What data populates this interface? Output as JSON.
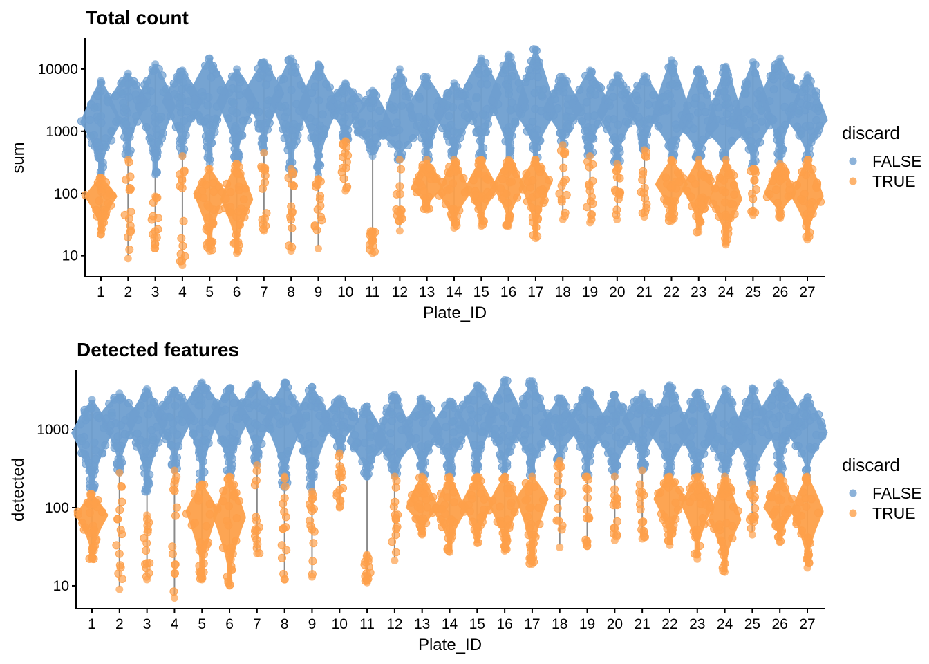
{
  "colors": {
    "FALSE": "#6f9fd0",
    "TRUE": "#fda04a",
    "line": "#8a8a8a"
  },
  "legend": {
    "title": "discard",
    "items": [
      "FALSE",
      "TRUE"
    ]
  },
  "chart_data": [
    {
      "type": "scatter",
      "title": "Total count",
      "xlabel": "Plate_ID",
      "ylabel": "sum",
      "yscale": "log10",
      "ylim": [
        4.6,
        31600
      ],
      "yticks": [
        10,
        100,
        1000,
        10000
      ],
      "ytick_labels": [
        "10",
        "100",
        "1000",
        "10000"
      ],
      "categories": [
        "1",
        "2",
        "3",
        "4",
        "5",
        "6",
        "7",
        "8",
        "9",
        "10",
        "11",
        "12",
        "13",
        "14",
        "15",
        "16",
        "17",
        "18",
        "19",
        "20",
        "21",
        "22",
        "23",
        "24",
        "25",
        "26",
        "27"
      ],
      "series": [
        {
          "name": "FALSE",
          "stat": "max/median/min",
          "values": [
            [
              6500,
              1400,
              200
            ],
            [
              8500,
              3000,
              400
            ],
            [
              12000,
              2500,
              200
            ],
            [
              9500,
              3000,
              400
            ],
            [
              15000,
              4000,
              300
            ],
            [
              10000,
              3000,
              300
            ],
            [
              13000,
              4000,
              450
            ],
            [
              15000,
              3000,
              200
            ],
            [
              12000,
              2500,
              200
            ],
            [
              6000,
              2500,
              700
            ],
            [
              4500,
              1200,
              400
            ],
            [
              10000,
              900,
              350
            ],
            [
              7500,
              2200,
              350
            ],
            [
              6000,
              1800,
              350
            ],
            [
              15000,
              4000,
              350
            ],
            [
              17000,
              3000,
              350
            ],
            [
              21000,
              2000,
              350
            ],
            [
              7500,
              2200,
              600
            ],
            [
              9500,
              2500,
              400
            ],
            [
              8000,
              2000,
              300
            ],
            [
              7800,
              2500,
              500
            ],
            [
              14000,
              1500,
              350
            ],
            [
              10000,
              1200,
              350
            ],
            [
              11000,
              1000,
              350
            ],
            [
              13000,
              1500,
              250
            ],
            [
              15000,
              3500,
              300
            ],
            [
              8000,
              1500,
              350
            ]
          ]
        },
        {
          "name": "TRUE",
          "stat": "max/median/min",
          "values": [
            [
              180,
              90,
              22
            ],
            [
              350,
              40,
              9
            ],
            [
              90,
              40,
              13
            ],
            [
              400,
              60,
              7
            ],
            [
              250,
              100,
              12
            ],
            [
              300,
              80,
              11
            ],
            [
              450,
              80,
              25
            ],
            [
              250,
              60,
              12
            ],
            [
              170,
              30,
              13
            ],
            [
              700,
              180,
              110
            ],
            [
              25,
              15,
              11
            ],
            [
              350,
              60,
              25
            ],
            [
              350,
              120,
              55
            ],
            [
              350,
              100,
              28
            ],
            [
              350,
              120,
              30
            ],
            [
              350,
              130,
              30
            ],
            [
              350,
              150,
              19
            ],
            [
              600,
              80,
              38
            ],
            [
              400,
              60,
              34
            ],
            [
              300,
              60,
              38
            ],
            [
              500,
              100,
              42
            ],
            [
              350,
              140,
              36
            ],
            [
              350,
              120,
              24
            ],
            [
              350,
              80,
              15
            ],
            [
              250,
              100,
              45
            ],
            [
              300,
              100,
              40
            ],
            [
              350,
              90,
              18
            ]
          ],
          "dense": [
            1,
            0,
            0,
            0,
            1,
            1,
            0,
            0,
            0,
            0,
            0,
            0,
            1,
            1,
            1,
            1,
            1,
            0,
            0,
            0,
            0,
            1,
            1,
            1,
            0,
            1,
            1
          ]
        }
      ]
    },
    {
      "type": "scatter",
      "title": "Detected features",
      "xlabel": "Plate_ID",
      "ylabel": "detected",
      "yscale": "log10",
      "ylim": [
        5.1,
        5770
      ],
      "yticks": [
        10,
        100,
        1000
      ],
      "ytick_labels": [
        "10",
        "100",
        "1000"
      ],
      "categories": [
        "1",
        "2",
        "3",
        "4",
        "5",
        "6",
        "7",
        "8",
        "9",
        "10",
        "11",
        "12",
        "13",
        "14",
        "15",
        "16",
        "17",
        "18",
        "19",
        "20",
        "21",
        "22",
        "23",
        "24",
        "25",
        "26",
        "27"
      ],
      "series": [
        {
          "name": "FALSE",
          "stat": "max/median/min",
          "values": [
            [
              2400,
              900,
              150
            ],
            [
              2900,
              1500,
              280
            ],
            [
              3300,
              1200,
              160
            ],
            [
              3200,
              1500,
              300
            ],
            [
              4000,
              1800,
              200
            ],
            [
              3400,
              1400,
              250
            ],
            [
              3800,
              1800,
              350
            ],
            [
              4000,
              1300,
              180
            ],
            [
              3500,
              1200,
              160
            ],
            [
              2500,
              1300,
              500
            ],
            [
              2000,
              700,
              250
            ],
            [
              2800,
              700,
              250
            ],
            [
              2500,
              1000,
              250
            ],
            [
              2300,
              1000,
              250
            ],
            [
              3700,
              1600,
              250
            ],
            [
              4300,
              1300,
              250
            ],
            [
              4200,
              1000,
              250
            ],
            [
              2500,
              1000,
              400
            ],
            [
              3200,
              1200,
              250
            ],
            [
              2800,
              900,
              250
            ],
            [
              2900,
              1300,
              300
            ],
            [
              3700,
              900,
              250
            ],
            [
              3000,
              900,
              250
            ],
            [
              3300,
              800,
              250
            ],
            [
              3400,
              800,
              200
            ],
            [
              4000,
              1700,
              250
            ],
            [
              2600,
              900,
              250
            ]
          ]
        },
        {
          "name": "TRUE",
          "stat": "max/median/min",
          "values": [
            [
              150,
              80,
              22
            ],
            [
              280,
              40,
              9
            ],
            [
              80,
              40,
              12
            ],
            [
              300,
              60,
              7
            ],
            [
              200,
              90,
              12
            ],
            [
              250,
              75,
              10
            ],
            [
              350,
              70,
              26
            ],
            [
              250,
              60,
              12
            ],
            [
              160,
              30,
              13
            ],
            [
              500,
              150,
              100
            ],
            [
              25,
              15,
              11
            ],
            [
              250,
              60,
              21
            ],
            [
              250,
              100,
              45
            ],
            [
              250,
              90,
              27
            ],
            [
              250,
              110,
              35
            ],
            [
              250,
              110,
              28
            ],
            [
              250,
              130,
              19
            ],
            [
              400,
              70,
              31
            ],
            [
              250,
              60,
              32
            ],
            [
              250,
              60,
              38
            ],
            [
              300,
              90,
              40
            ],
            [
              250,
              130,
              33
            ],
            [
              250,
              110,
              22
            ],
            [
              250,
              70,
              15
            ],
            [
              200,
              100,
              45
            ],
            [
              250,
              100,
              36
            ],
            [
              250,
              90,
              17
            ]
          ],
          "dense": [
            1,
            0,
            0,
            0,
            1,
            1,
            0,
            0,
            0,
            0,
            0,
            0,
            1,
            1,
            1,
            1,
            1,
            0,
            0,
            0,
            0,
            1,
            1,
            1,
            0,
            1,
            1
          ]
        }
      ]
    }
  ]
}
